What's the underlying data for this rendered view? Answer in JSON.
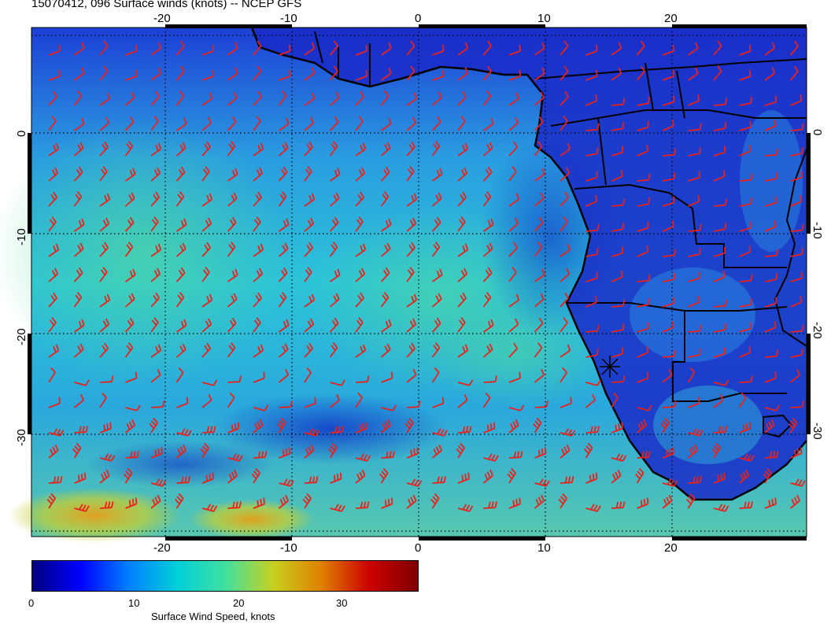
{
  "title": "15070412, 096 Surface winds (knots) -- NCEP GFS",
  "map": {
    "lon_ticks": [
      "-20",
      "-10",
      "0",
      "10",
      "20"
    ],
    "lat_ticks": [
      "0",
      "-10",
      "-20",
      "-30"
    ],
    "lon_range": [
      -30,
      31
    ],
    "lat_range": [
      -40,
      11
    ],
    "wind_barb_color": "#e8221b",
    "coastline_color": "#000000",
    "marker": {
      "symbol": "asterisk",
      "lon": 15,
      "lat": -23
    }
  },
  "colorbar": {
    "title": "Surface Wind Speed, knots",
    "ticks": [
      "0",
      "10",
      "20",
      "30"
    ],
    "range": [
      0,
      37
    ],
    "colors": [
      "#00007f",
      "#0000ff",
      "#0080ff",
      "#00d0d8",
      "#40e0a0",
      "#c8d020",
      "#e08000",
      "#cc0000",
      "#7f0000"
    ]
  }
}
